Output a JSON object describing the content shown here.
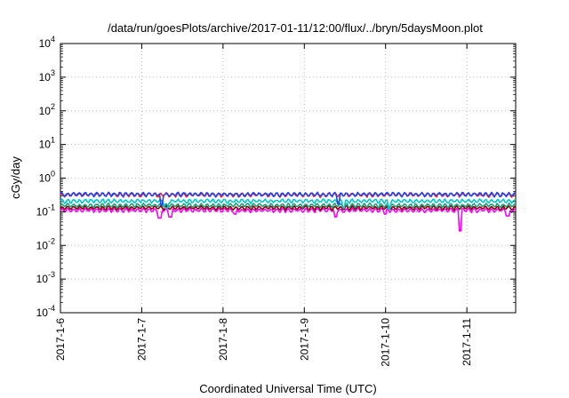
{
  "chart_data": {
    "type": "line",
    "title": "/data/run/goesPlots/archive/2017-01-11/12:00/flux/../bryn/5daysMoon.plot",
    "xlabel": "Coordinated Universal Time (UTC)",
    "ylabel": "cGy/day",
    "y_scale": "log",
    "ylim": [
      0.0001,
      10000
    ],
    "xlim_days": [
      0,
      5.6
    ],
    "grid": true,
    "x_ticks": [
      {
        "label": "2017-1-6",
        "day": 0
      },
      {
        "label": "2017-1-7",
        "day": 1
      },
      {
        "label": "2017-1-8",
        "day": 2
      },
      {
        "label": "2017-1-9",
        "day": 3
      },
      {
        "label": "2017-1-10",
        "day": 4
      },
      {
        "label": "2017-1-11",
        "day": 5
      }
    ],
    "y_ticks": [
      {
        "base": "10",
        "exp": "-4",
        "value": 0.0001
      },
      {
        "base": "10",
        "exp": "-3",
        "value": 0.001
      },
      {
        "base": "10",
        "exp": "-2",
        "value": 0.01
      },
      {
        "base": "10",
        "exp": "-1",
        "value": 0.1
      },
      {
        "base": "10",
        "exp": "0",
        "value": 1
      },
      {
        "base": "10",
        "exp": "1",
        "value": 10
      },
      {
        "base": "10",
        "exp": "2",
        "value": 100
      },
      {
        "base": "10",
        "exp": "3",
        "value": 1000
      },
      {
        "base": "10",
        "exp": "4",
        "value": 10000
      }
    ],
    "series": [
      {
        "color": "#ff00ff",
        "base": 0.115,
        "dips": [
          [
            1.22,
            0.065
          ],
          [
            1.35,
            0.07
          ],
          [
            2.15,
            0.085
          ],
          [
            3.38,
            0.07
          ],
          [
            4.0,
            0.085
          ],
          [
            4.92,
            0.027
          ],
          [
            5.5,
            0.075
          ]
        ]
      },
      {
        "color": "#8b0000",
        "base": 0.135,
        "dips": []
      },
      {
        "color": "#1aa07a",
        "base": 0.16,
        "dips": []
      },
      {
        "color": "#00c8c8",
        "base": 0.215,
        "dips": [
          [
            1.3,
            0.13
          ],
          [
            3.48,
            0.13
          ],
          [
            4.05,
            0.12
          ]
        ]
      },
      {
        "color": "#ff2020",
        "base": 0.33,
        "dips": []
      },
      {
        "color": "#2040ff",
        "base": 0.34,
        "dips": [
          [
            1.25,
            0.16
          ],
          [
            3.42,
            0.17
          ]
        ]
      }
    ]
  }
}
